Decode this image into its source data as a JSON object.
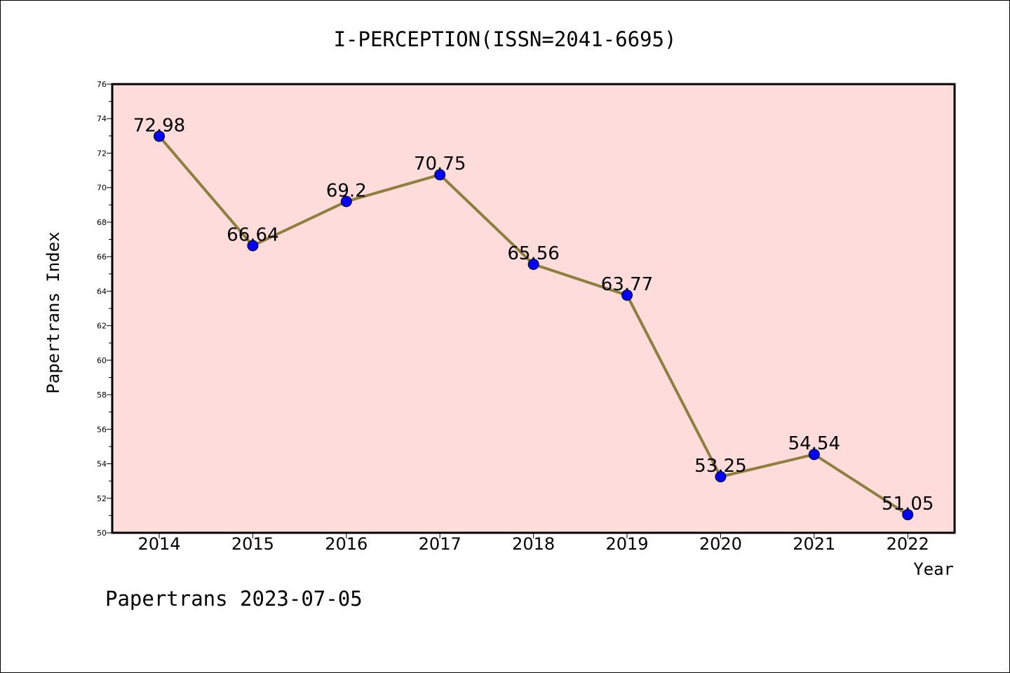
{
  "chart_data": {
    "type": "line",
    "title": "I-PERCEPTION(ISSN=2041-6695)",
    "xlabel": "Year",
    "ylabel": "Papertrans Index",
    "categories": [
      "2014",
      "2015",
      "2016",
      "2017",
      "2018",
      "2019",
      "2020",
      "2021",
      "2022"
    ],
    "values": [
      72.98,
      66.64,
      69.2,
      70.75,
      65.56,
      63.77,
      53.25,
      54.54,
      51.05
    ],
    "data_labels": [
      "72.98",
      "66.64",
      "69.2",
      "70.75",
      "65.56",
      "63.77",
      "53.25",
      "54.54",
      "51.05"
    ],
    "ylim": [
      50,
      76
    ],
    "yticks": [
      "50",
      "52",
      "54",
      "56",
      "58",
      "60",
      "62",
      "64",
      "66",
      "68",
      "70",
      "72",
      "74",
      "76"
    ],
    "grid": false,
    "legend": "none",
    "colors": {
      "plot_background": "#ffdcdc",
      "line": "#8e7f3e",
      "marker": "#0000ff"
    }
  },
  "footer": {
    "text": "Papertrans 2023-07-05"
  }
}
